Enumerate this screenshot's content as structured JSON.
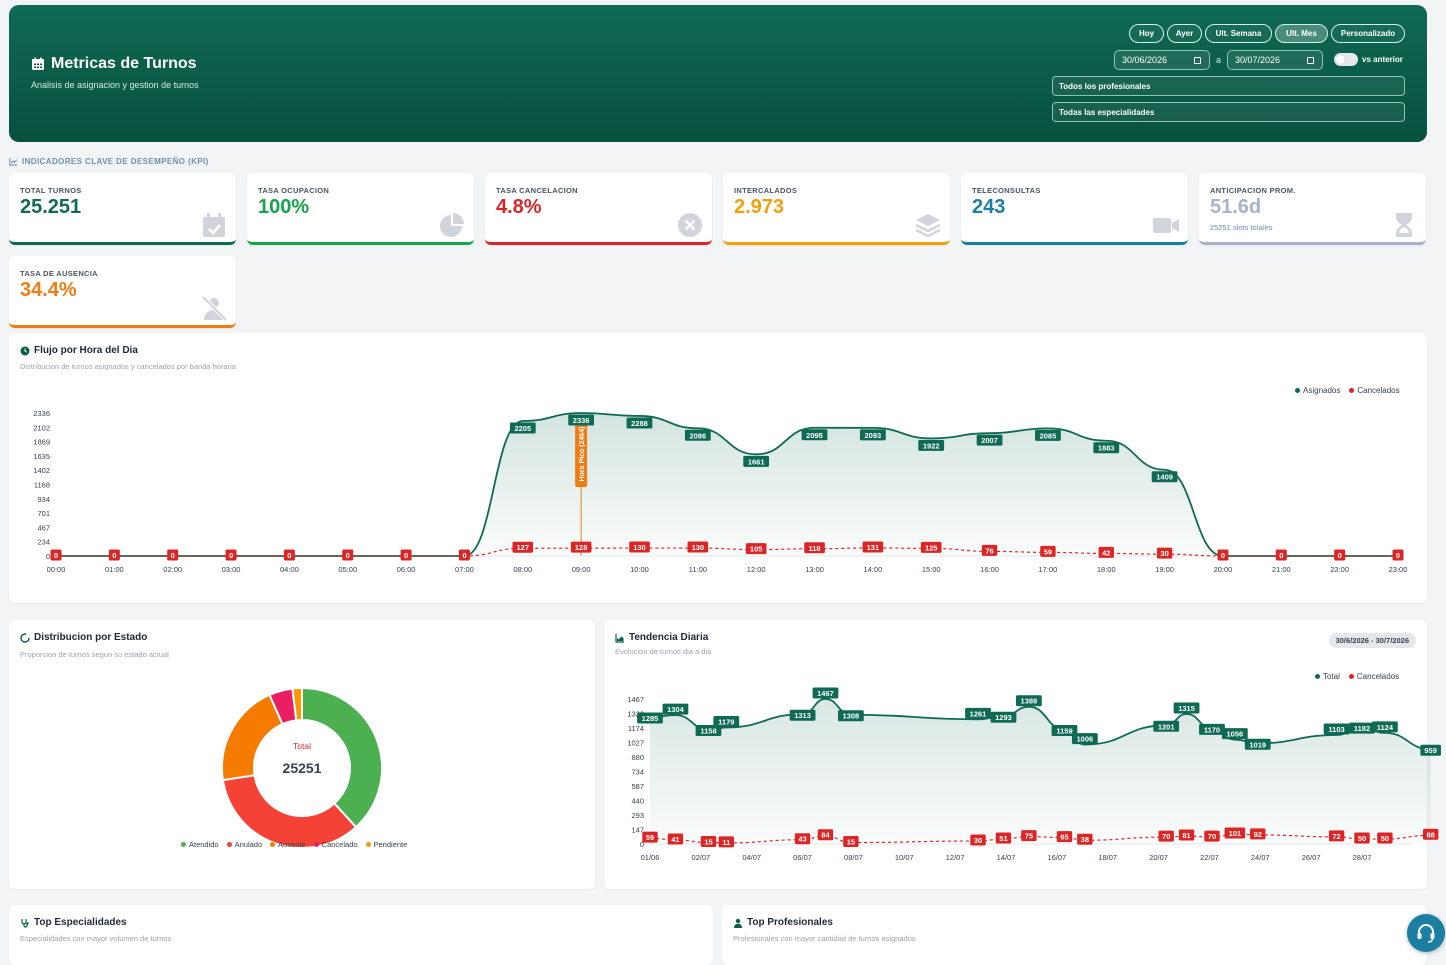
{
  "header": {
    "title": "Metricas de Turnos",
    "subtitle": "Analisis de asignacion y gestion de turnos",
    "periods": [
      {
        "label": "Hoy",
        "active": false
      },
      {
        "label": "Ayer",
        "active": false
      },
      {
        "label": "Ult. Semana",
        "active": false
      },
      {
        "label": "Ult. Mes",
        "active": true
      },
      {
        "label": "Personalizado",
        "active": false
      }
    ],
    "date_from": "30/06/2026",
    "date_to": "30/07/2026",
    "date_sep": "a",
    "compare_label": "vs anterior",
    "professional_filter": "Todos los profesionales",
    "specialty_filter": "Todas las especialidades"
  },
  "kpi_section_label": "INDICADORES CLAVE DE DESEMPEÑO (KPI)",
  "kpis": [
    {
      "label": "TOTAL TURNOS",
      "value": "25.251",
      "sub": "",
      "color": "#0f6a54",
      "icon": "calendar-check-icon"
    },
    {
      "label": "TASA OCUPACION",
      "value": "100%",
      "sub": "",
      "color": "#16a34a",
      "icon": "pie-icon"
    },
    {
      "label": "TASA CANCELACION",
      "value": "4.8%",
      "sub": "",
      "color": "#dc2626",
      "icon": "cancel-circle-icon"
    },
    {
      "label": "INTERCALADOS",
      "value": "2.973",
      "sub": "",
      "color": "#f59e0b",
      "icon": "layers-icon"
    },
    {
      "label": "TELECONSULTAS",
      "value": "243",
      "sub": "",
      "color": "#1a7fa0",
      "icon": "video-icon"
    },
    {
      "label": "ANTICIPACION PROM.",
      "value": "51.6d",
      "sub": "25251 slots totales",
      "color": "#a5b4c8",
      "icon": "hourglass-icon"
    },
    {
      "label": "TASA DE AUSENCIA",
      "value": "34.4%",
      "sub": "",
      "color": "#f07c14",
      "icon": "user-slash-icon"
    }
  ],
  "hourly": {
    "title": "Flujo por Hora del Dia",
    "subtitle": "Distribucion de turnos asignados y cancelados por banda horaria",
    "legend": [
      "Asignados",
      "Cancelados"
    ],
    "colors": {
      "asignados": "#0f6a54",
      "cancelados": "#dc2626",
      "peak": "#f07c14"
    },
    "peak_label": "Hora Pico (2464)",
    "chart_data": {
      "type": "line",
      "categories": [
        "00:00",
        "01:00",
        "02:00",
        "03:00",
        "04:00",
        "05:00",
        "06:00",
        "07:00",
        "08:00",
        "09:00",
        "10:00",
        "11:00",
        "12:00",
        "13:00",
        "14:00",
        "15:00",
        "16:00",
        "17:00",
        "18:00",
        "19:00",
        "20:00",
        "21:00",
        "22:00",
        "23:00"
      ],
      "series": [
        {
          "name": "Asignados",
          "values": [
            0,
            0,
            0,
            0,
            0,
            0,
            0,
            0,
            2205,
            2336,
            2288,
            2086,
            1661,
            2095,
            2093,
            1922,
            2007,
            2085,
            1883,
            1409,
            0,
            0,
            0,
            0
          ]
        },
        {
          "name": "Cancelados",
          "values": [
            0,
            0,
            0,
            0,
            0,
            0,
            0,
            0,
            127,
            128,
            130,
            130,
            105,
            118,
            131,
            125,
            76,
            59,
            42,
            30,
            0,
            0,
            0,
            0
          ]
        }
      ],
      "yticks": [
        "2336",
        "2102",
        "1869",
        "1635",
        "1402",
        "1168",
        "934",
        "701",
        "467",
        "234",
        "0"
      ],
      "ylim": [
        0,
        2336
      ]
    }
  },
  "status": {
    "title": "Distribucion por Estado",
    "subtitle": "Proporcion de turnos segun su estado actual",
    "center_label": "Total",
    "center_value": "25251",
    "chart_data": {
      "type": "pie",
      "labels": [
        "Atendido",
        "Anulado",
        "Ausente",
        "Cancelado",
        "Pendiente"
      ],
      "values": [
        9650,
        8680,
        5240,
        1200,
        481
      ],
      "colors": [
        "#4caf50",
        "#f44336",
        "#f57c00",
        "#e91e63",
        "#ff9800"
      ]
    }
  },
  "daily": {
    "title": "Tendencia Diaria",
    "subtitle": "Evolucion de turnos dia a dia",
    "range_badge": "30/6/2026 - 30/7/2026",
    "legend": [
      "Total",
      "Cancelados"
    ],
    "chart_data": {
      "type": "line",
      "points": [
        {
          "x": "01/06",
          "total": 1285,
          "cancel": 59
        },
        {
          "x": "",
          "total": 1304,
          "cancel": 41
        },
        {
          "x": "02/07",
          "total": 1158,
          "cancel": 15
        },
        {
          "x": "",
          "total": 1179,
          "cancel": 11
        },
        {
          "x": "06/07",
          "total": 1313,
          "cancel": 43
        },
        {
          "x": "",
          "total": 1467,
          "cancel": 84
        },
        {
          "x": "08/07",
          "total": 1308,
          "cancel": 15
        },
        {
          "x": "12/07",
          "total": 1261,
          "cancel": 30
        },
        {
          "x": "",
          "total": 1293,
          "cancel": 51
        },
        {
          "x": "",
          "total": 1389,
          "cancel": 75
        },
        {
          "x": "16/07",
          "total": 1159,
          "cancel": 65
        },
        {
          "x": "",
          "total": 1006,
          "cancel": 38
        },
        {
          "x": "20/07",
          "total": 1201,
          "cancel": 70
        },
        {
          "x": "",
          "total": 1315,
          "cancel": 81
        },
        {
          "x": "22/07",
          "total": 1170,
          "cancel": 70
        },
        {
          "x": "",
          "total": 1056,
          "cancel": 101
        },
        {
          "x": "24/07",
          "total": 1019,
          "cancel": 92
        },
        {
          "x": "",
          "total": 1103,
          "cancel": 72
        },
        {
          "x": "28/07",
          "total": 1182,
          "cancel": 50
        },
        {
          "x": "",
          "total": 1124,
          "cancel": 50
        },
        {
          "x": "",
          "total": 959,
          "cancel": 88
        }
      ],
      "xticks": [
        "01/06",
        "02/07",
        "04/07",
        "06/07",
        "08/07",
        "10/07",
        "12/07",
        "14/07",
        "16/07",
        "18/07",
        "20/07",
        "22/07",
        "24/07",
        "26/07",
        "28/07"
      ],
      "yticks": [
        "1467",
        "1320",
        "1174",
        "1027",
        "880",
        "734",
        "587",
        "440",
        "293",
        "147",
        "0"
      ],
      "ylim": [
        0,
        1467
      ]
    }
  },
  "top_specialties": {
    "title": "Top Especialidades",
    "subtitle": "Especialidades con mayor volumen de turnos"
  },
  "top_professionals": {
    "title": "Top Profesionales",
    "subtitle": "Profesionales con mayor cantidad de turnos asignados"
  }
}
